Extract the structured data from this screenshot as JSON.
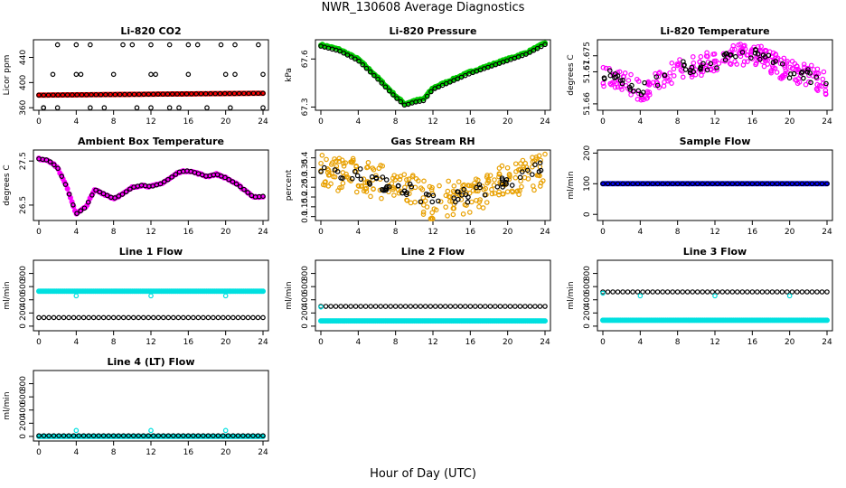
{
  "figure": {
    "title": "NWR_130608  Average Diagnostics",
    "xlabel": "Hour of Day (UTC)"
  },
  "chart_data": [
    {
      "type": "scatter",
      "title": "Li-820 CO2",
      "ylabel": "Licor ppm",
      "xlim": [
        0,
        24
      ],
      "ylim": [
        356,
        468
      ],
      "xticks": [
        0,
        4,
        8,
        12,
        16,
        20,
        24
      ],
      "yticks": [
        360,
        400,
        440
      ],
      "series": [
        {
          "color": "#ff0000",
          "marker": "filled",
          "values_x": [
            0,
            24
          ],
          "values_y": [
            380,
            383
          ],
          "density": 130
        },
        {
          "color": "#000000",
          "marker": "open",
          "values_x": [
            0,
            24
          ],
          "values_y": [
            380,
            383
          ],
          "density": 48
        },
        {
          "color": "#000000",
          "marker": "open",
          "values_x": [
            0.5,
            2,
            4,
            5.5,
            9,
            10,
            12,
            14,
            16,
            17,
            19.5,
            21,
            23.5
          ],
          "values_y": [
            360,
            460,
            460,
            460,
            460,
            460,
            460,
            460,
            460,
            460,
            460,
            460,
            460
          ]
        },
        {
          "color": "#000000",
          "marker": "open",
          "values_x": [
            1.5,
            4,
            4.5,
            8,
            12,
            12.5,
            16,
            20,
            21,
            24
          ],
          "values_y": [
            413,
            413,
            413,
            413,
            413,
            413,
            413,
            413,
            413,
            413
          ]
        },
        {
          "color": "#000000",
          "marker": "open",
          "values_x": [
            0.5,
            2,
            5.5,
            7,
            10.5,
            12,
            14,
            15,
            18,
            20.5,
            24
          ],
          "values_y": [
            360,
            360,
            360,
            360,
            360,
            360,
            360,
            360,
            360,
            360,
            360
          ]
        }
      ]
    },
    {
      "type": "scatter",
      "title": "Li-820 Pressure",
      "ylabel": "kPa",
      "xlim": [
        0,
        24
      ],
      "ylim": [
        67.28,
        67.72
      ],
      "xticks": [
        0,
        4,
        8,
        12,
        16,
        20,
        24
      ],
      "yticks": [
        67.3,
        67.6
      ],
      "series": [
        {
          "color": "#00cc00",
          "marker": "filled",
          "values_x": [
            0,
            2,
            4,
            6,
            8,
            9,
            10,
            11,
            12,
            14,
            16,
            18,
            20,
            22,
            24
          ],
          "values_y": [
            67.69,
            67.66,
            67.6,
            67.49,
            67.37,
            67.32,
            67.34,
            67.35,
            67.42,
            67.47,
            67.52,
            67.56,
            67.6,
            67.64,
            67.7
          ]
        },
        {
          "color": "#000000",
          "marker": "open",
          "values_x": [
            0,
            2,
            4,
            6,
            8,
            9,
            10,
            11,
            12,
            14,
            16,
            18,
            20,
            22,
            24
          ],
          "values_y": [
            67.68,
            67.65,
            67.59,
            67.48,
            67.36,
            67.31,
            67.33,
            67.34,
            67.41,
            67.46,
            67.51,
            67.55,
            67.59,
            67.63,
            67.69
          ]
        }
      ]
    },
    {
      "type": "scatter",
      "title": "Li-820 Temperature",
      "ylabel": "degrees C",
      "xlim": [
        0,
        24
      ],
      "ylim": [
        51.658,
        51.68
      ],
      "xticks": [
        0,
        4,
        8,
        12,
        16,
        20,
        24
      ],
      "yticks": [
        51.66,
        51.67,
        51.675
      ],
      "series": [
        {
          "color": "#ff00ff",
          "marker": "open",
          "values_x": [
            0,
            2,
            4,
            6,
            8,
            10,
            12,
            14,
            16,
            18,
            20,
            22,
            24
          ],
          "values_y": [
            51.669,
            51.668,
            51.664,
            51.667,
            51.671,
            51.672,
            51.673,
            51.675,
            51.676,
            51.673,
            51.67,
            51.669,
            51.666
          ],
          "scatter_spread": 0.0035
        },
        {
          "color": "#000000",
          "marker": "open",
          "values_x": [
            0,
            2,
            4,
            6,
            8,
            10,
            12,
            14,
            16,
            18,
            20,
            22,
            24
          ],
          "values_y": [
            51.669,
            51.668,
            51.664,
            51.667,
            51.671,
            51.672,
            51.673,
            51.675,
            51.676,
            51.673,
            51.67,
            51.669,
            51.666
          ],
          "scatter_spread": 0.002
        }
      ]
    },
    {
      "type": "scatter",
      "title": "Ambient Box Temperature",
      "ylabel": "degrees C",
      "xlim": [
        0,
        24
      ],
      "ylim": [
        26.15,
        27.75
      ],
      "xticks": [
        0,
        4,
        8,
        12,
        16,
        20,
        24
      ],
      "yticks": [
        26.5,
        27.5
      ],
      "series": [
        {
          "color": "#ff00ff",
          "marker": "filled",
          "values_x": [
            0,
            1,
            2,
            3,
            4,
            5,
            6,
            7,
            8,
            9,
            10,
            11,
            12,
            13,
            14,
            15,
            16,
            17,
            18,
            19,
            20,
            21,
            22,
            23,
            24
          ],
          "values_y": [
            27.55,
            27.52,
            27.35,
            26.9,
            26.3,
            26.45,
            26.85,
            26.75,
            26.65,
            26.75,
            26.9,
            26.95,
            26.92,
            26.98,
            27.1,
            27.25,
            27.28,
            27.22,
            27.15,
            27.2,
            27.12,
            27.0,
            26.85,
            26.68,
            26.7
          ]
        },
        {
          "color": "#000000",
          "marker": "open",
          "values_x": [
            0,
            1,
            2,
            3,
            4,
            5,
            6,
            7,
            8,
            9,
            10,
            11,
            12,
            13,
            14,
            15,
            16,
            17,
            18,
            19,
            20,
            21,
            22,
            23,
            24
          ],
          "values_y": [
            27.55,
            27.52,
            27.35,
            26.9,
            26.3,
            26.45,
            26.85,
            26.75,
            26.65,
            26.75,
            26.9,
            26.95,
            26.92,
            26.98,
            27.1,
            27.25,
            27.28,
            27.22,
            27.15,
            27.2,
            27.12,
            27.0,
            26.85,
            26.68,
            26.7
          ]
        }
      ]
    },
    {
      "type": "scatter",
      "title": "Gas Stream RH",
      "ylabel": "percent",
      "xlim": [
        0,
        24
      ],
      "ylim": [
        0.08,
        0.44
      ],
      "xticks": [
        0,
        4,
        8,
        12,
        16,
        20,
        24
      ],
      "yticks": [
        0.1,
        0.15,
        0.2,
        0.25,
        0.3,
        0.35,
        0.4
      ],
      "series": [
        {
          "color": "#e8a000",
          "marker": "open",
          "values_x": [
            0,
            2,
            4,
            6,
            8,
            10,
            12,
            14,
            16,
            18,
            20,
            22,
            24
          ],
          "values_y": [
            0.33,
            0.32,
            0.31,
            0.28,
            0.26,
            0.22,
            0.17,
            0.2,
            0.2,
            0.25,
            0.28,
            0.31,
            0.33
          ],
          "scatter_spread": 0.09
        },
        {
          "color": "#000000",
          "marker": "open",
          "values_x": [
            0,
            2,
            4,
            6,
            8,
            10,
            12,
            14,
            16,
            18,
            20,
            22,
            24
          ],
          "values_y": [
            0.33,
            0.32,
            0.31,
            0.28,
            0.26,
            0.22,
            0.17,
            0.2,
            0.2,
            0.25,
            0.28,
            0.31,
            0.36
          ],
          "scatter_spread": 0.04
        }
      ]
    },
    {
      "type": "scatter",
      "title": "Sample Flow",
      "ylabel": "ml/min",
      "xlim": [
        0,
        24
      ],
      "ylim": [
        -20,
        210
      ],
      "xticks": [
        0,
        4,
        8,
        12,
        16,
        20,
        24
      ],
      "yticks": [
        0,
        100,
        200
      ],
      "series": [
        {
          "color": "#0000ff",
          "marker": "filled",
          "values_x": [
            0,
            24
          ],
          "values_y": [
            100,
            100
          ]
        },
        {
          "color": "#000000",
          "marker": "open",
          "values_x": [
            0,
            24
          ],
          "values_y": [
            100,
            100
          ]
        }
      ]
    },
    {
      "type": "scatter",
      "title": "Line 1 Flow",
      "ylabel": "ml/min",
      "xlim": [
        0,
        24
      ],
      "ylim": [
        -70,
        1000
      ],
      "xticks": [
        0,
        4,
        8,
        12,
        16,
        20,
        24
      ],
      "yticks": [
        0,
        200,
        400,
        600,
        800
      ],
      "series": [
        {
          "color": "#00e0e0",
          "marker": "filled",
          "values_x": [
            0,
            24
          ],
          "values_y": [
            530,
            530
          ]
        },
        {
          "color": "#00e0e0",
          "marker": "open",
          "values_x": [
            4,
            12,
            20
          ],
          "values_y": [
            460,
            460,
            460
          ]
        },
        {
          "color": "#000000",
          "marker": "open",
          "values_x": [
            0,
            24
          ],
          "values_y": [
            130,
            130
          ]
        }
      ]
    },
    {
      "type": "scatter",
      "title": "Line 2 Flow",
      "ylabel": "ml/min",
      "xlim": [
        0,
        24
      ],
      "ylim": [
        -70,
        1000
      ],
      "xticks": [
        0,
        4,
        8,
        12,
        16,
        20,
        24
      ],
      "yticks": [
        0,
        200,
        400,
        600,
        800
      ],
      "series": [
        {
          "color": "#00e0e0",
          "marker": "filled",
          "values_x": [
            0,
            24
          ],
          "values_y": [
            80,
            80
          ]
        },
        {
          "color": "#000000",
          "marker": "open",
          "values_x": [
            0,
            24
          ],
          "values_y": [
            300,
            300
          ]
        },
        {
          "color": "#00e0e0",
          "marker": "open",
          "values_x": [
            0
          ],
          "values_y": [
            290
          ]
        }
      ]
    },
    {
      "type": "scatter",
      "title": "Line 3 Flow",
      "ylabel": "ml/min",
      "xlim": [
        0,
        24
      ],
      "ylim": [
        -70,
        1000
      ],
      "xticks": [
        0,
        4,
        8,
        12,
        16,
        20,
        24
      ],
      "yticks": [
        0,
        200,
        400,
        600,
        800
      ],
      "series": [
        {
          "color": "#00e0e0",
          "marker": "filled",
          "values_x": [
            0,
            24
          ],
          "values_y": [
            90,
            90
          ]
        },
        {
          "color": "#000000",
          "marker": "open",
          "values_x": [
            0,
            24
          ],
          "values_y": [
            520,
            520
          ]
        },
        {
          "color": "#00e0e0",
          "marker": "open",
          "values_x": [
            0,
            4,
            12,
            20
          ],
          "values_y": [
            500,
            460,
            460,
            460
          ]
        }
      ]
    },
    {
      "type": "scatter",
      "title": "Line 4 (LT) Flow",
      "ylabel": "ml/min",
      "xlim": [
        0,
        24
      ],
      "ylim": [
        -70,
        1000
      ],
      "xticks": [
        0,
        4,
        8,
        12,
        16,
        20,
        24
      ],
      "yticks": [
        0,
        200,
        400,
        600,
        800
      ],
      "series": [
        {
          "color": "#00e0e0",
          "marker": "filled",
          "values_x": [
            0,
            24
          ],
          "values_y": [
            0,
            0
          ]
        },
        {
          "color": "#000000",
          "marker": "open",
          "values_x": [
            0,
            24
          ],
          "values_y": [
            10,
            10
          ]
        },
        {
          "color": "#00e0e0",
          "marker": "open",
          "values_x": [
            4,
            12,
            20
          ],
          "values_y": [
            90,
            90,
            90
          ]
        }
      ]
    }
  ]
}
